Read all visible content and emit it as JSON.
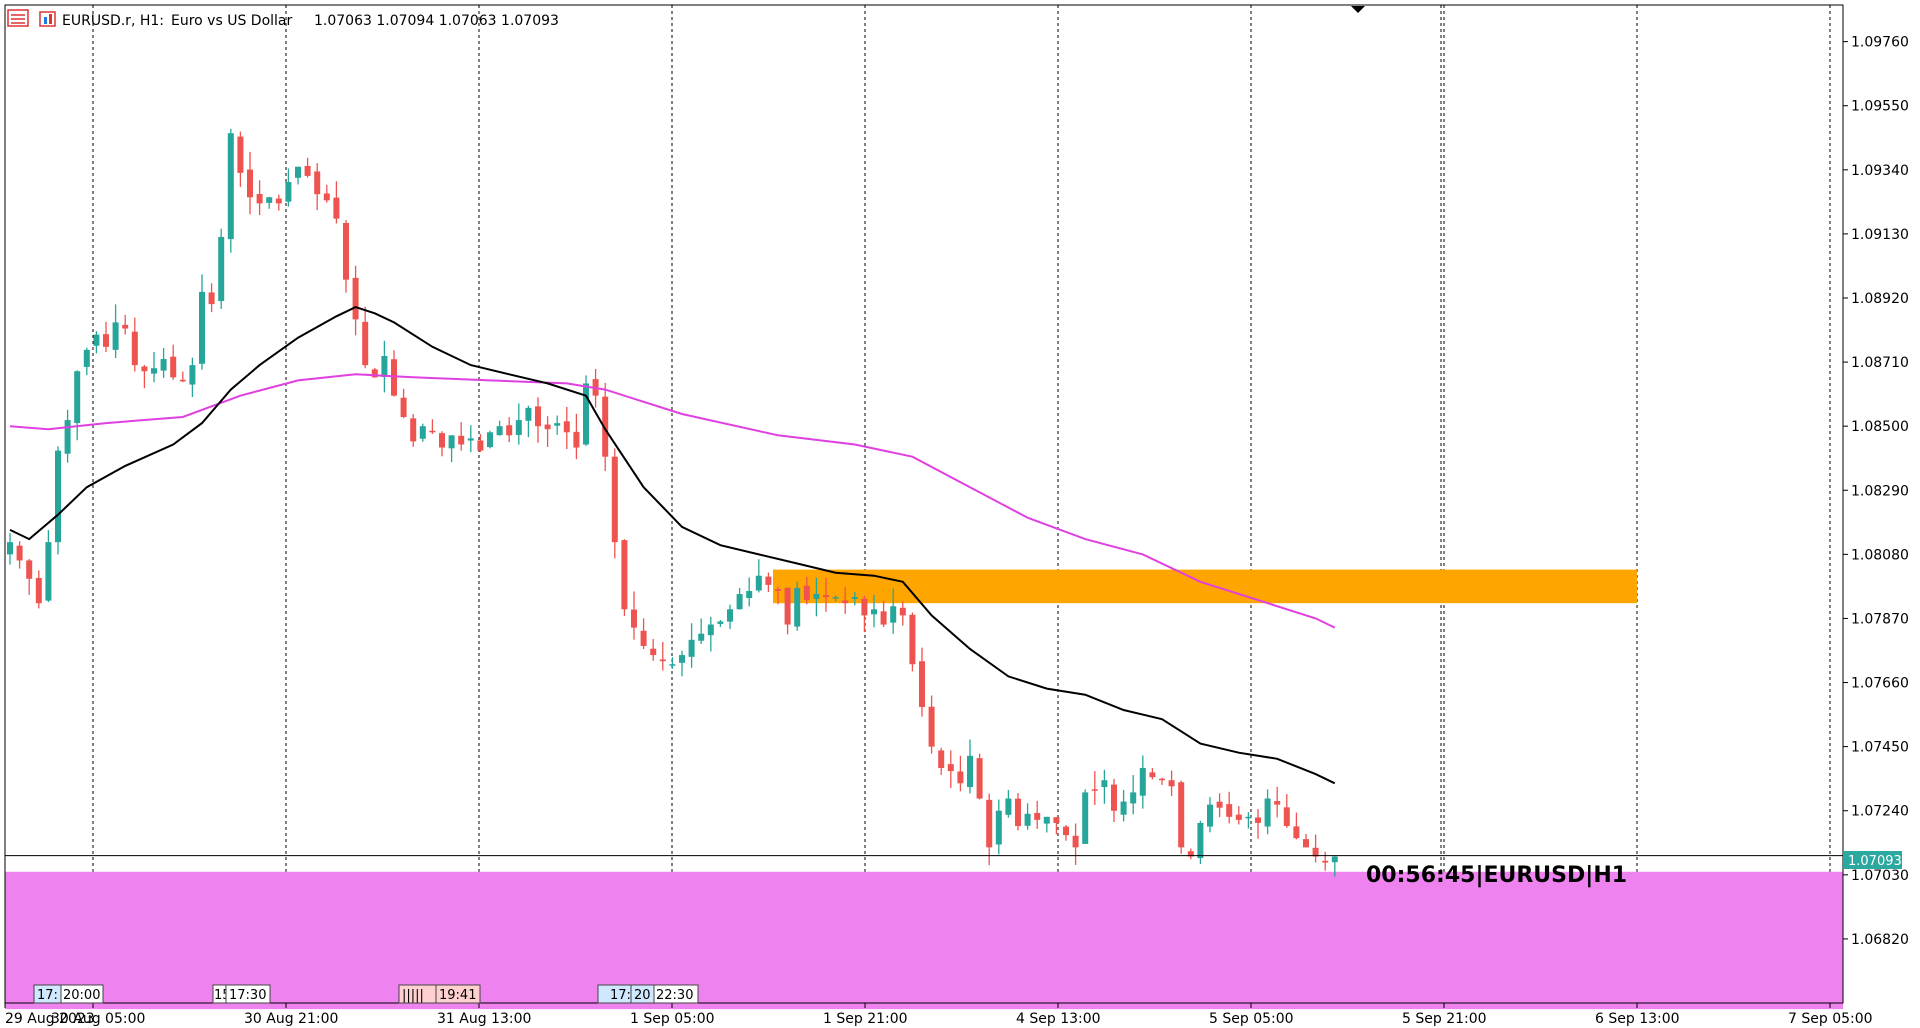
{
  "header": {
    "symbol": "EURUSD.r, H1:",
    "description": "Euro vs US Dollar",
    "ohlc": "1.07063 1.07094 1.07063 1.07093"
  },
  "timer_label": "00:56:45|EURUSD|H1",
  "current_price_label": "1.07093",
  "colors": {
    "bull": "#26a69a",
    "bear": "#ef5350",
    "ma_fast": "#000000",
    "ma_slow": "#e040e0",
    "resistance_zone": "#ffa500",
    "support_zone": "#ee82ee",
    "grid": "#000000",
    "price_tag": "#2ba8a0"
  },
  "event_badges": [
    {
      "label": "17:",
      "color": "#cfe8ff"
    },
    {
      "label": "20:00",
      "color": "#ffffff"
    },
    {
      "label": "15",
      "color": "#ffffff"
    },
    {
      "label": "17:30",
      "color": "#ffffff"
    },
    {
      "label": "|||||",
      "color": "#ffd0d0"
    },
    {
      "label": "19:41",
      "color": "#ffd0d0"
    },
    {
      "label": "17:",
      "color": "#cfe8ff"
    },
    {
      "label": "20",
      "color": "#cfe8ff"
    },
    {
      "label": "22:30",
      "color": "#ffffff"
    }
  ],
  "chart_data": {
    "type": "candlestick",
    "title": "",
    "symbol": "EURUSD.r",
    "timeframe": "H1",
    "grid": "vertical dashed",
    "ylim": [
      1.0661,
      1.0988
    ],
    "y_ticks": [
      "1.09760",
      "1.09550",
      "1.09340",
      "1.09130",
      "1.08920",
      "1.08710",
      "1.08500",
      "1.08290",
      "1.08080",
      "1.07870",
      "1.07660",
      "1.07450",
      "1.07240",
      "1.07030",
      "1.06820"
    ],
    "x_ticks": [
      "29 Aug 2023",
      "30 Aug 05:00",
      "30 Aug 21:00",
      "31 Aug 13:00",
      "1 Sep 05:00",
      "1 Sep 21:00",
      "4 Sep 13:00",
      "5 Sep 05:00",
      "5 Sep 21:00",
      "6 Sep 13:00",
      "7 Sep 05:00"
    ],
    "candles_total": 139,
    "current_price": 1.07093,
    "zones": [
      {
        "name": "resistance",
        "from": 1.0792,
        "to": 1.0803
      },
      {
        "name": "support",
        "from": 1.0659,
        "to": 1.0704
      }
    ],
    "close_anchors": [
      [
        0,
        1.0812
      ],
      [
        2,
        1.08
      ],
      [
        3,
        1.0792
      ],
      [
        4,
        1.0812
      ],
      [
        5,
        1.0842
      ],
      [
        6,
        1.0852
      ],
      [
        7,
        1.0868
      ],
      [
        8,
        1.0875
      ],
      [
        9,
        1.088
      ],
      [
        10,
        1.0876
      ],
      [
        11,
        1.0884
      ],
      [
        12,
        1.0882
      ],
      [
        13,
        1.087
      ],
      [
        14,
        1.0868
      ],
      [
        15,
        1.0869
      ],
      [
        16,
        1.0872
      ],
      [
        17,
        1.0866
      ],
      [
        18,
        1.0865
      ],
      [
        19,
        1.087
      ],
      [
        20,
        1.0894
      ],
      [
        21,
        1.089
      ],
      [
        22,
        1.0912
      ],
      [
        23,
        1.0946
      ],
      [
        24,
        1.0933
      ],
      [
        25,
        1.0925
      ],
      [
        26,
        1.0923
      ],
      [
        27,
        1.0925
      ],
      [
        28,
        1.0923
      ],
      [
        29,
        1.093
      ],
      [
        30,
        1.0935
      ],
      [
        31,
        1.0932
      ],
      [
        32,
        1.0926
      ],
      [
        33,
        1.0924
      ],
      [
        34,
        1.0918
      ],
      [
        35,
        1.0898
      ],
      [
        36,
        1.0885
      ],
      [
        37,
        1.087
      ],
      [
        38,
        1.0866
      ],
      [
        39,
        1.0873
      ],
      [
        40,
        1.086
      ],
      [
        41,
        1.0853
      ],
      [
        42,
        1.0845
      ],
      [
        43,
        1.085
      ],
      [
        44,
        1.0848
      ],
      [
        45,
        1.0843
      ],
      [
        46,
        1.0847
      ],
      [
        47,
        1.0844
      ],
      [
        48,
        1.0846
      ],
      [
        49,
        1.0842
      ],
      [
        50,
        1.0848
      ],
      [
        51,
        1.085
      ],
      [
        52,
        1.0847
      ],
      [
        53,
        1.0852
      ],
      [
        54,
        1.0856
      ],
      [
        55,
        1.085
      ],
      [
        56,
        1.0849
      ],
      [
        57,
        1.0851
      ],
      [
        58,
        1.0848
      ],
      [
        59,
        1.0843
      ],
      [
        60,
        1.0864
      ],
      [
        61,
        1.086
      ],
      [
        62,
        1.084
      ],
      [
        63,
        1.0812
      ],
      [
        64,
        1.079
      ],
      [
        65,
        1.0784
      ],
      [
        66,
        1.0778
      ],
      [
        67,
        1.0775
      ],
      [
        68,
        1.0773
      ],
      [
        69,
        1.0772
      ],
      [
        70,
        1.0775
      ],
      [
        71,
        1.078
      ],
      [
        72,
        1.0782
      ],
      [
        73,
        1.0785
      ],
      [
        74,
        1.0786
      ],
      [
        75,
        1.079
      ],
      [
        76,
        1.0795
      ],
      [
        77,
        1.0796
      ],
      [
        78,
        1.0801
      ],
      [
        79,
        1.0798
      ],
      [
        80,
        1.0796
      ],
      [
        81,
        1.0785
      ],
      [
        82,
        1.0797
      ],
      [
        83,
        1.0793
      ],
      [
        84,
        1.0795
      ],
      [
        85,
        1.0794
      ],
      [
        86,
        1.0794
      ],
      [
        87,
        1.0792
      ],
      [
        88,
        1.0794
      ],
      [
        89,
        1.0788
      ],
      [
        90,
        1.079
      ],
      [
        91,
        1.0785
      ],
      [
        92,
        1.0791
      ],
      [
        93,
        1.0788
      ],
      [
        94,
        1.0772
      ],
      [
        95,
        1.0758
      ],
      [
        96,
        1.0745
      ],
      [
        97,
        1.0738
      ],
      [
        98,
        1.0737
      ],
      [
        99,
        1.0733
      ],
      [
        100,
        1.0742
      ],
      [
        101,
        1.0728
      ],
      [
        102,
        1.0712
      ],
      [
        103,
        1.0724
      ],
      [
        104,
        1.0728
      ],
      [
        105,
        1.0719
      ],
      [
        106,
        1.0723
      ],
      [
        107,
        1.0721
      ],
      [
        108,
        1.0722
      ],
      [
        109,
        1.072
      ],
      [
        110,
        1.0716
      ],
      [
        111,
        1.0712
      ],
      [
        112,
        1.073
      ],
      [
        113,
        1.0731
      ],
      [
        114,
        1.0734
      ],
      [
        115,
        1.0724
      ],
      [
        116,
        1.0727
      ],
      [
        117,
        1.073
      ],
      [
        118,
        1.0738
      ],
      [
        119,
        1.0735
      ],
      [
        120,
        1.0734
      ],
      [
        121,
        1.0732
      ],
      [
        122,
        1.0712
      ],
      [
        123,
        1.0709
      ],
      [
        124,
        1.072
      ],
      [
        125,
        1.0726
      ],
      [
        126,
        1.0725
      ],
      [
        127,
        1.0722
      ],
      [
        128,
        1.0721
      ],
      [
        129,
        1.0722
      ],
      [
        130,
        1.072
      ],
      [
        131,
        1.0728
      ],
      [
        132,
        1.0726
      ],
      [
        133,
        1.0719
      ],
      [
        134,
        1.0715
      ],
      [
        135,
        1.0712
      ],
      [
        136,
        1.0709
      ],
      [
        137,
        1.0707
      ],
      [
        138,
        1.0709
      ]
    ],
    "ma_fast_points": [
      [
        0,
        1.0816
      ],
      [
        2,
        1.0813
      ],
      [
        5,
        1.0821
      ],
      [
        8,
        1.083
      ],
      [
        12,
        1.0837
      ],
      [
        17,
        1.0844
      ],
      [
        20,
        1.0851
      ],
      [
        23,
        1.0862
      ],
      [
        26,
        1.087
      ],
      [
        30,
        1.0879
      ],
      [
        34,
        1.0886
      ],
      [
        36,
        1.0889
      ],
      [
        38,
        1.0887
      ],
      [
        40,
        1.0884
      ],
      [
        44,
        1.0876
      ],
      [
        48,
        1.087
      ],
      [
        52,
        1.0867
      ],
      [
        56,
        1.0864
      ],
      [
        60,
        1.086
      ],
      [
        62,
        1.0849
      ],
      [
        66,
        1.083
      ],
      [
        70,
        1.0817
      ],
      [
        74,
        1.0811
      ],
      [
        78,
        1.0808
      ],
      [
        82,
        1.0805
      ],
      [
        86,
        1.0802
      ],
      [
        90,
        1.0801
      ],
      [
        93,
        1.0799
      ],
      [
        96,
        1.0788
      ],
      [
        100,
        1.0777
      ],
      [
        104,
        1.0768
      ],
      [
        108,
        1.0764
      ],
      [
        112,
        1.0762
      ],
      [
        116,
        1.0757
      ],
      [
        120,
        1.0754
      ],
      [
        124,
        1.0746
      ],
      [
        128,
        1.0743
      ],
      [
        132,
        1.0741
      ],
      [
        136,
        1.0736
      ],
      [
        138,
        1.0733
      ]
    ],
    "ma_slow_points": [
      [
        0,
        1.085
      ],
      [
        4,
        1.0849
      ],
      [
        10,
        1.0851
      ],
      [
        18,
        1.0853
      ],
      [
        24,
        1.086
      ],
      [
        30,
        1.0865
      ],
      [
        36,
        1.0867
      ],
      [
        42,
        1.0866
      ],
      [
        50,
        1.0865
      ],
      [
        58,
        1.0864
      ],
      [
        62,
        1.0862
      ],
      [
        70,
        1.0854
      ],
      [
        80,
        1.0847
      ],
      [
        88,
        1.0844
      ],
      [
        94,
        1.084
      ],
      [
        100,
        1.083
      ],
      [
        106,
        1.082
      ],
      [
        112,
        1.0813
      ],
      [
        118,
        1.0808
      ],
      [
        124,
        1.0799
      ],
      [
        130,
        1.0793
      ],
      [
        136,
        1.0787
      ],
      [
        138,
        1.0784
      ]
    ]
  }
}
